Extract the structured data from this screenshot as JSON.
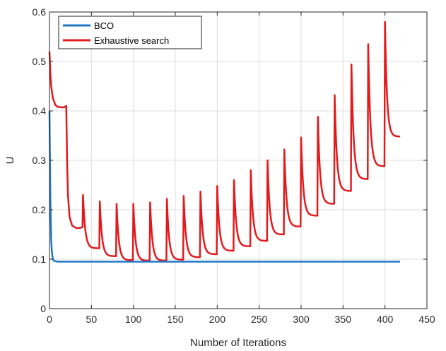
{
  "chart_data": {
    "type": "line",
    "xlabel": "Number of Iterations",
    "ylabel": "U",
    "xlim": [
      0,
      450
    ],
    "ylim": [
      0,
      0.6
    ],
    "xticks": [
      0,
      50,
      100,
      150,
      200,
      250,
      300,
      350,
      400,
      450
    ],
    "yticks": [
      0,
      0.1,
      0.2,
      0.3,
      0.4,
      0.5,
      0.6
    ],
    "xtick_labels": [
      "0",
      "50",
      "100",
      "150",
      "200",
      "250",
      "300",
      "350",
      "400",
      "450"
    ],
    "ytick_labels": [
      "0",
      "0.1",
      "0.2",
      "0.3",
      "0.4",
      "0.5",
      "0.6"
    ],
    "grid": true,
    "legend_position": "top-left",
    "series": [
      {
        "name": "BCO",
        "color": "#1f77c4",
        "x": [
          0,
          1,
          2,
          3,
          4,
          5,
          7,
          10,
          20,
          50,
          100,
          200,
          300,
          400,
          418
        ],
        "y": [
          0.4,
          0.23,
          0.14,
          0.112,
          0.101,
          0.097,
          0.096,
          0.095,
          0.095,
          0.095,
          0.095,
          0.095,
          0.095,
          0.095,
          0.095
        ]
      },
      {
        "name": "Exhaustive search",
        "color": "#e31a1c",
        "peaks": [
          {
            "x": 40,
            "y": 0.23
          },
          {
            "x": 60,
            "y": 0.217
          },
          {
            "x": 80,
            "y": 0.212
          },
          {
            "x": 100,
            "y": 0.212
          },
          {
            "x": 120,
            "y": 0.215
          },
          {
            "x": 140,
            "y": 0.222
          },
          {
            "x": 160,
            "y": 0.228
          },
          {
            "x": 180,
            "y": 0.237
          },
          {
            "x": 200,
            "y": 0.248
          },
          {
            "x": 220,
            "y": 0.26
          },
          {
            "x": 240,
            "y": 0.28
          },
          {
            "x": 260,
            "y": 0.3
          },
          {
            "x": 280,
            "y": 0.322
          },
          {
            "x": 300,
            "y": 0.346
          },
          {
            "x": 320,
            "y": 0.388
          },
          {
            "x": 340,
            "y": 0.432
          },
          {
            "x": 360,
            "y": 0.494
          },
          {
            "x": 380,
            "y": 0.535
          },
          {
            "x": 400,
            "y": 0.58
          }
        ],
        "troughs": [
          {
            "x": 39.5,
            "y": 0.165
          },
          {
            "x": 59.5,
            "y": 0.122
          },
          {
            "x": 79.5,
            "y": 0.106
          },
          {
            "x": 99.5,
            "y": 0.098
          },
          {
            "x": 119.5,
            "y": 0.097
          },
          {
            "x": 139.5,
            "y": 0.097
          },
          {
            "x": 159.5,
            "y": 0.099
          },
          {
            "x": 179.5,
            "y": 0.104
          },
          {
            "x": 199.5,
            "y": 0.11
          },
          {
            "x": 219.5,
            "y": 0.117
          },
          {
            "x": 239.5,
            "y": 0.126
          },
          {
            "x": 259.5,
            "y": 0.137
          },
          {
            "x": 279.5,
            "y": 0.15
          },
          {
            "x": 299.5,
            "y": 0.166
          },
          {
            "x": 319.5,
            "y": 0.188
          },
          {
            "x": 339.5,
            "y": 0.212
          },
          {
            "x": 359.5,
            "y": 0.238
          },
          {
            "x": 379.5,
            "y": 0.262
          },
          {
            "x": 399.5,
            "y": 0.288
          },
          {
            "x": 418,
            "y": 0.348
          }
        ],
        "start": [
          {
            "x": 0,
            "y": 0.52
          },
          {
            "x": 1,
            "y": 0.478
          },
          {
            "x": 2,
            "y": 0.45
          },
          {
            "x": 4,
            "y": 0.426
          },
          {
            "x": 7,
            "y": 0.412
          },
          {
            "x": 10,
            "y": 0.408
          },
          {
            "x": 17,
            "y": 0.407
          },
          {
            "x": 20,
            "y": 0.41
          },
          {
            "x": 21,
            "y": 0.3
          },
          {
            "x": 22,
            "y": 0.23
          },
          {
            "x": 24,
            "y": 0.185
          },
          {
            "x": 27,
            "y": 0.168
          },
          {
            "x": 32,
            "y": 0.163
          },
          {
            "x": 36,
            "y": 0.163
          },
          {
            "x": 39.5,
            "y": 0.165
          }
        ]
      }
    ]
  }
}
